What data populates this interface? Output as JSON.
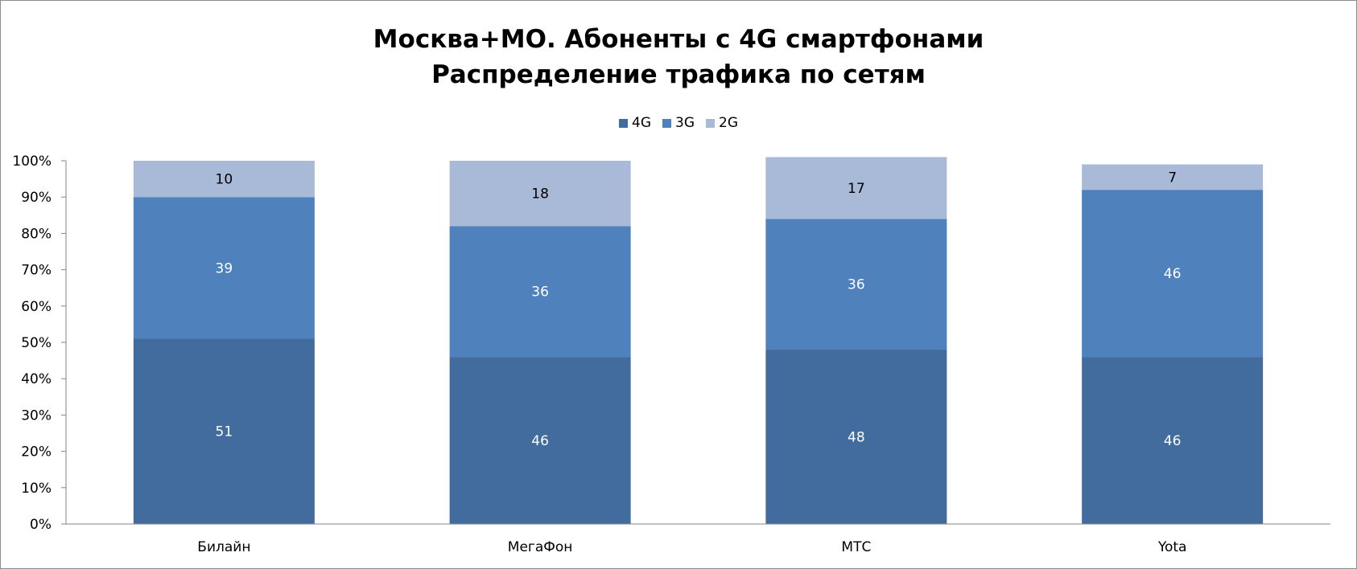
{
  "chart_data": {
    "type": "bar",
    "stacked": true,
    "percent": true,
    "title": "Москва+МО. Абоненты с 4G смартфонами",
    "subtitle": "Распределение трафика по сетям",
    "categories": [
      "Билайн",
      "МегаФон",
      "МТС",
      "Yota"
    ],
    "series": [
      {
        "name": "4G",
        "values": [
          51,
          46,
          48,
          46
        ],
        "color": "#426C9E",
        "label_color": "#ffffff"
      },
      {
        "name": "3G",
        "values": [
          39,
          36,
          36,
          46
        ],
        "color": "#4F81BD",
        "label_color": "#ffffff"
      },
      {
        "name": "2G",
        "values": [
          10,
          18,
          17,
          7
        ],
        "color": "#A9B9D8",
        "label_color": "#000000"
      }
    ],
    "yticks": [
      "0%",
      "10%",
      "20%",
      "30%",
      "40%",
      "50%",
      "60%",
      "70%",
      "80%",
      "90%",
      "100%"
    ],
    "ylim": [
      0,
      100
    ],
    "legend_position": "top",
    "grid": false
  }
}
